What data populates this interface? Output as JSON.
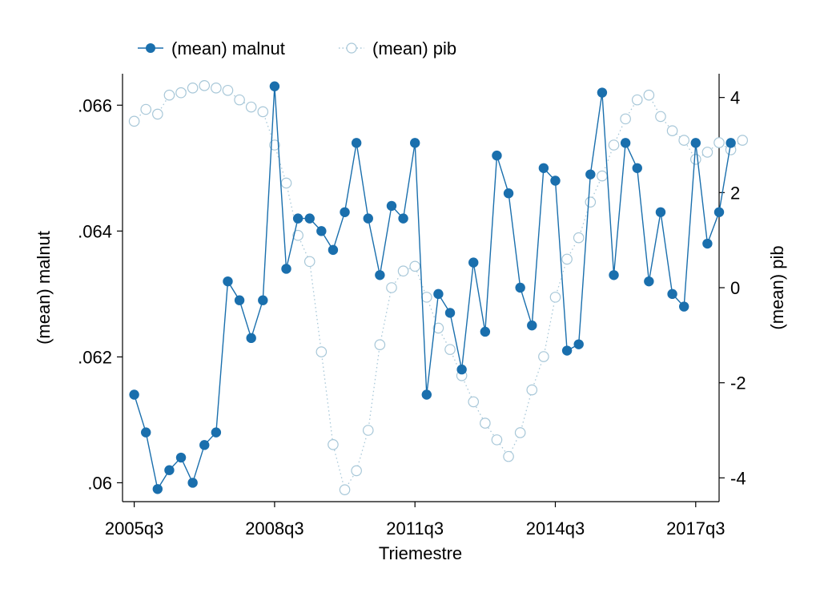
{
  "chart_data": {
    "type": "line",
    "title": "",
    "xlabel": "Triemestre",
    "ylabel": "(mean) malnut",
    "y2label": "(mean) pib",
    "legend_position": "top-left",
    "x_tick_labels": [
      "2005q3",
      "2008q3",
      "2011q3",
      "2014q3",
      "2017q3"
    ],
    "x_ticks": [
      0,
      12,
      24,
      36,
      48
    ],
    "xlim": [
      -1,
      50
    ],
    "y_tick_labels": [
      ".06",
      ".062",
      ".064",
      ".066"
    ],
    "y_ticks": [
      0.06,
      0.062,
      0.064,
      0.066
    ],
    "ylim": [
      0.0597,
      0.0665
    ],
    "y2_tick_labels": [
      "-4",
      "-2",
      "0",
      "2",
      "4"
    ],
    "y2_ticks": [
      -4,
      -2,
      0,
      2,
      4
    ],
    "y2lim": [
      -4.5,
      4.5
    ],
    "series": [
      {
        "name": "(mean) malnut",
        "axis": "left",
        "color": "#1a6fad",
        "style": "solid-filled",
        "values": [
          0.0614,
          0.0608,
          0.0599,
          0.0602,
          0.0604,
          0.06,
          0.0606,
          0.0608,
          0.0632,
          0.0629,
          0.0623,
          0.0629,
          0.0663,
          0.0634,
          0.0642,
          0.0642,
          0.064,
          0.0637,
          0.0643,
          0.0654,
          0.0642,
          0.0633,
          0.0644,
          0.0642,
          0.0654,
          0.0614,
          0.063,
          0.0627,
          0.0618,
          0.0635,
          0.0624,
          0.0652,
          0.0646,
          0.0631,
          0.0625,
          0.065,
          0.0648,
          0.0621,
          0.0622,
          0.0649,
          0.0662,
          0.0633,
          0.0654,
          0.065,
          0.0632,
          0.0643,
          0.063,
          0.0628,
          0.0654,
          0.0638,
          0.0643,
          0.0654
        ]
      },
      {
        "name": "(mean) pib",
        "axis": "right",
        "color": "#a7c7d8",
        "style": "dotted-hollow",
        "values": [
          3.5,
          3.75,
          3.65,
          4.05,
          4.1,
          4.2,
          4.25,
          4.2,
          4.15,
          3.95,
          3.8,
          3.7,
          3.0,
          2.2,
          1.1,
          0.55,
          -1.35,
          -3.3,
          -4.25,
          -3.85,
          -3.0,
          -1.2,
          0.0,
          0.35,
          0.45,
          -0.2,
          -0.85,
          -1.3,
          -1.85,
          -2.4,
          -2.85,
          -3.2,
          -3.55,
          -3.05,
          -2.15,
          -1.45,
          -0.2,
          0.6,
          1.05,
          1.8,
          2.35,
          3.0,
          3.55,
          3.95,
          4.05,
          3.6,
          3.3,
          3.1,
          2.7,
          2.85,
          3.05,
          2.9,
          3.1
        ]
      }
    ]
  }
}
